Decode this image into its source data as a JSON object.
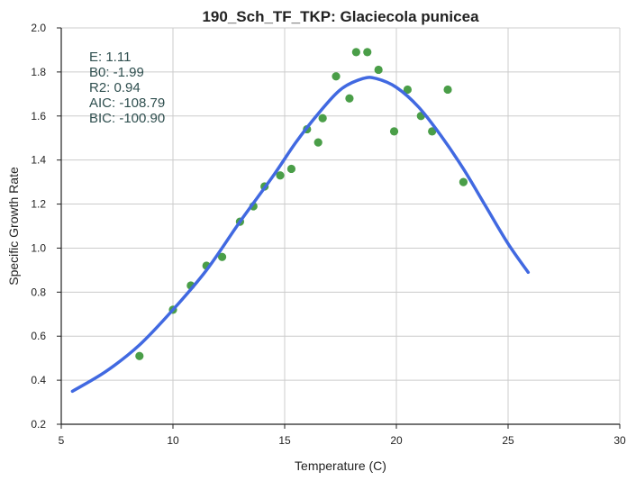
{
  "chart_data": {
    "type": "scatter",
    "title": "190_Sch_TF_TKP: Glaciecola punicea",
    "xlabel": "Temperature (C)",
    "ylabel": "Specific Growth Rate",
    "xlim": [
      5,
      30
    ],
    "ylim": [
      0.2,
      2.0
    ],
    "x_ticks": [
      "5",
      "10",
      "15",
      "20",
      "25",
      "30"
    ],
    "y_ticks": [
      "0.2",
      "0.4",
      "0.6",
      "0.8",
      "1.0",
      "1.2",
      "1.4",
      "1.6",
      "1.8",
      "2.0"
    ],
    "grid": true,
    "colors": {
      "points": "#4a9e48",
      "fit_line": "#4169e1"
    },
    "points": [
      {
        "x": 8.5,
        "y": 0.51
      },
      {
        "x": 10.0,
        "y": 0.72
      },
      {
        "x": 10.8,
        "y": 0.83
      },
      {
        "x": 11.5,
        "y": 0.92
      },
      {
        "x": 12.2,
        "y": 0.96
      },
      {
        "x": 13.0,
        "y": 1.12
      },
      {
        "x": 13.6,
        "y": 1.19
      },
      {
        "x": 14.1,
        "y": 1.28
      },
      {
        "x": 14.8,
        "y": 1.33
      },
      {
        "x": 15.3,
        "y": 1.36
      },
      {
        "x": 16.0,
        "y": 1.54
      },
      {
        "x": 16.5,
        "y": 1.48
      },
      {
        "x": 16.7,
        "y": 1.59
      },
      {
        "x": 17.3,
        "y": 1.78
      },
      {
        "x": 17.9,
        "y": 1.68
      },
      {
        "x": 18.2,
        "y": 1.89
      },
      {
        "x": 18.7,
        "y": 1.89
      },
      {
        "x": 19.2,
        "y": 1.81
      },
      {
        "x": 19.9,
        "y": 1.53
      },
      {
        "x": 20.5,
        "y": 1.72
      },
      {
        "x": 21.1,
        "y": 1.6
      },
      {
        "x": 21.6,
        "y": 1.53
      },
      {
        "x": 22.3,
        "y": 1.72
      },
      {
        "x": 23.0,
        "y": 1.3
      }
    ],
    "fit_curve": [
      {
        "x": 5.5,
        "y": 0.35
      },
      {
        "x": 7.0,
        "y": 0.44
      },
      {
        "x": 8.5,
        "y": 0.56
      },
      {
        "x": 10.0,
        "y": 0.72
      },
      {
        "x": 11.5,
        "y": 0.9
      },
      {
        "x": 13.0,
        "y": 1.12
      },
      {
        "x": 14.5,
        "y": 1.33
      },
      {
        "x": 15.5,
        "y": 1.48
      },
      {
        "x": 16.5,
        "y": 1.61
      },
      {
        "x": 17.5,
        "y": 1.72
      },
      {
        "x": 18.5,
        "y": 1.77
      },
      {
        "x": 19.1,
        "y": 1.77
      },
      {
        "x": 20.0,
        "y": 1.73
      },
      {
        "x": 21.0,
        "y": 1.64
      },
      {
        "x": 22.0,
        "y": 1.51
      },
      {
        "x": 23.0,
        "y": 1.36
      },
      {
        "x": 24.0,
        "y": 1.19
      },
      {
        "x": 25.0,
        "y": 1.02
      },
      {
        "x": 25.9,
        "y": 0.89
      }
    ],
    "annotations": [
      "E:  1.11",
      "B0:  -1.99",
      "R2:  0.94",
      "AIC: -108.79",
      "BIC: -100.90"
    ]
  }
}
